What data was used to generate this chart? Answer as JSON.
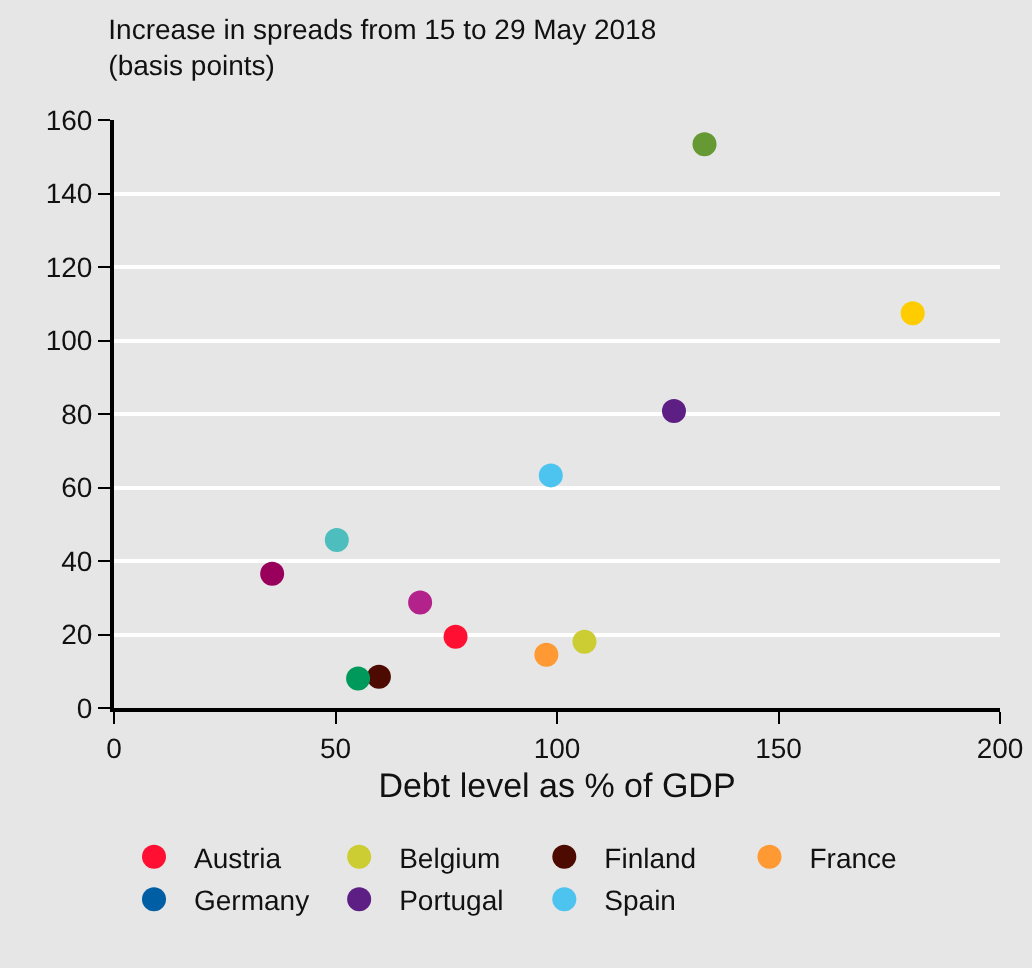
{
  "chart_data": {
    "type": "scatter",
    "title": "Increase in spreads from 15 to 29 May 2018",
    "subtitle": "(basis points)",
    "xlabel": "Debt level as % of GDP",
    "xlim": [
      0,
      200
    ],
    "xticks": [
      0,
      50,
      100,
      150,
      200
    ],
    "ylim": [
      0,
      160
    ],
    "yticks": [
      0,
      20,
      40,
      60,
      80,
      100,
      120,
      140,
      160
    ],
    "grid": "y",
    "legend": "bottom",
    "marker": "circle",
    "series": [
      {
        "name": "Austria",
        "color": "#ff1033",
        "x": [
          77.1
        ],
        "values": [
          19.4
        ]
      },
      {
        "name": "Belgium",
        "color": "#cccc33",
        "x": [
          106.2
        ],
        "values": [
          18
        ]
      },
      {
        "name": "Finland",
        "color": "#4d0a00",
        "x": [
          59.8
        ],
        "values": [
          8.5
        ]
      },
      {
        "name": "France",
        "color": "#ff9933",
        "x": [
          97.6
        ],
        "values": [
          14.5
        ]
      },
      {
        "name": "Germany",
        "color": "#005ea5",
        "x": [
          null
        ],
        "values": [
          null
        ]
      },
      {
        "name": "Portugal",
        "color": "#5e1f85",
        "x": [
          126.4
        ],
        "values": [
          80.8
        ]
      },
      {
        "name": "Spain",
        "color": "#4dc4f0",
        "x": [
          98.6
        ],
        "values": [
          63.3
        ]
      },
      {
        "color": "#669933",
        "x": [
          133.3
        ],
        "values": [
          153.4
        ]
      },
      {
        "color": "#ffcc00",
        "x": [
          180.3
        ],
        "values": [
          107.4
        ]
      },
      {
        "color": "#4dbdbd",
        "x": [
          50.3
        ],
        "values": [
          45.7
        ]
      },
      {
        "color": "#99005c",
        "x": [
          35.7
        ],
        "values": [
          36.5
        ]
      },
      {
        "color": "#b3218a",
        "x": [
          69.1
        ],
        "values": [
          28.7
        ]
      },
      {
        "color": "#00995c",
        "x": [
          55.1
        ],
        "values": [
          8
        ]
      }
    ]
  }
}
